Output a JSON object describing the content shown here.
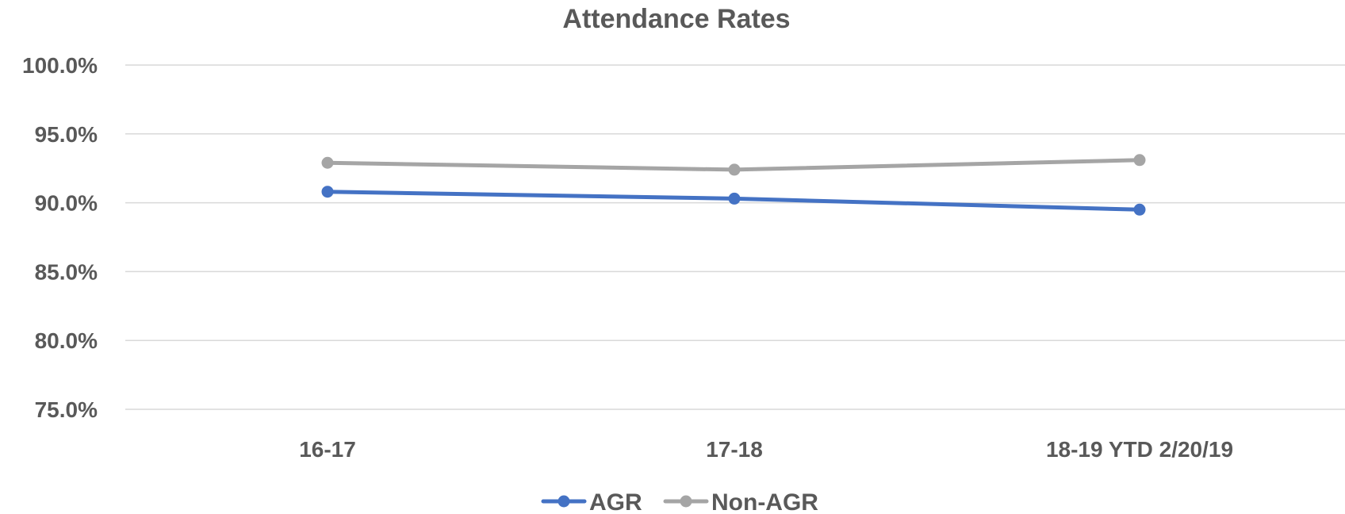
{
  "chart_data": {
    "type": "line",
    "title": "Attendance Rates",
    "xlabel": "",
    "ylabel": "",
    "categories": [
      "16-17",
      "17-18",
      "18-19 YTD 2/20/19"
    ],
    "series": [
      {
        "name": "AGR",
        "values": [
          90.8,
          90.3,
          89.5
        ],
        "color": "#4472c4"
      },
      {
        "name": "Non-AGR",
        "values": [
          92.9,
          92.4,
          93.1
        ],
        "color": "#a5a5a5"
      }
    ],
    "ylim": [
      75,
      100
    ],
    "yticks": [
      75,
      80,
      85,
      90,
      95,
      100
    ],
    "ytick_labels": [
      "75.0%",
      "80.0%",
      "85.0%",
      "90.0%",
      "95.0%",
      "100.0%"
    ],
    "grid": true,
    "legend_position": "bottom"
  }
}
